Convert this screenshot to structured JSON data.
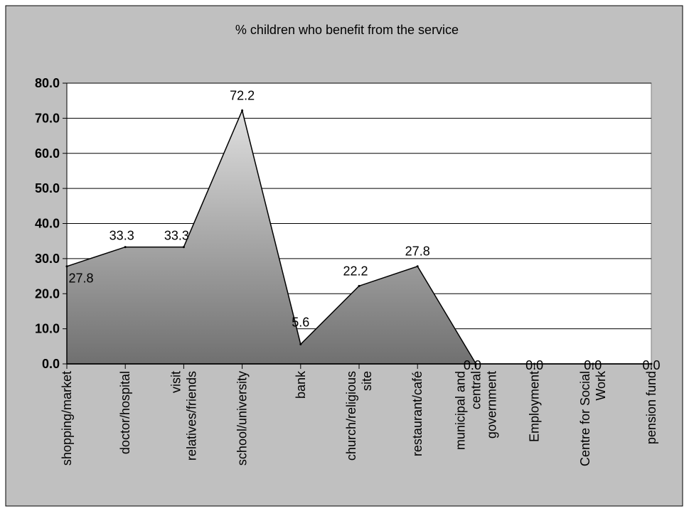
{
  "chart_data": {
    "type": "area",
    "title": "% children who benefit from the service",
    "categories": [
      [
        "shopping/market"
      ],
      [
        "doctor/hospital"
      ],
      [
        "visit",
        "relatives/friends"
      ],
      [
        "school/university"
      ],
      [
        "bank"
      ],
      [
        "church/religious",
        "site"
      ],
      [
        "restaurant/café"
      ],
      [
        "municipal and",
        "central",
        "government"
      ],
      [
        "Employment"
      ],
      [
        "Centre for Social",
        "Work"
      ],
      [
        "pension fund"
      ]
    ],
    "values": [
      27.8,
      33.3,
      33.3,
      72.2,
      5.6,
      22.2,
      27.8,
      0.0,
      0.0,
      0.0,
      0.0
    ],
    "value_labels": [
      "27.8",
      "33.3",
      "33.3",
      "72.2",
      "5.6",
      "22.2",
      "27.8",
      "0.0",
      "0.0",
      "0.0",
      "0.0"
    ],
    "y_ticks": [
      "0.0",
      "10.0",
      "20.0",
      "30.0",
      "40.0",
      "50.0",
      "60.0",
      "70.0",
      "80.0"
    ],
    "ylim": [
      0,
      80
    ],
    "grid": true,
    "legend": "none",
    "colors": {
      "outer_background": "#c0c0c0",
      "plot_background": "#ffffff",
      "area_top": "#e0e0e0",
      "area_bottom": "#707070",
      "gridline": "#000000"
    }
  }
}
